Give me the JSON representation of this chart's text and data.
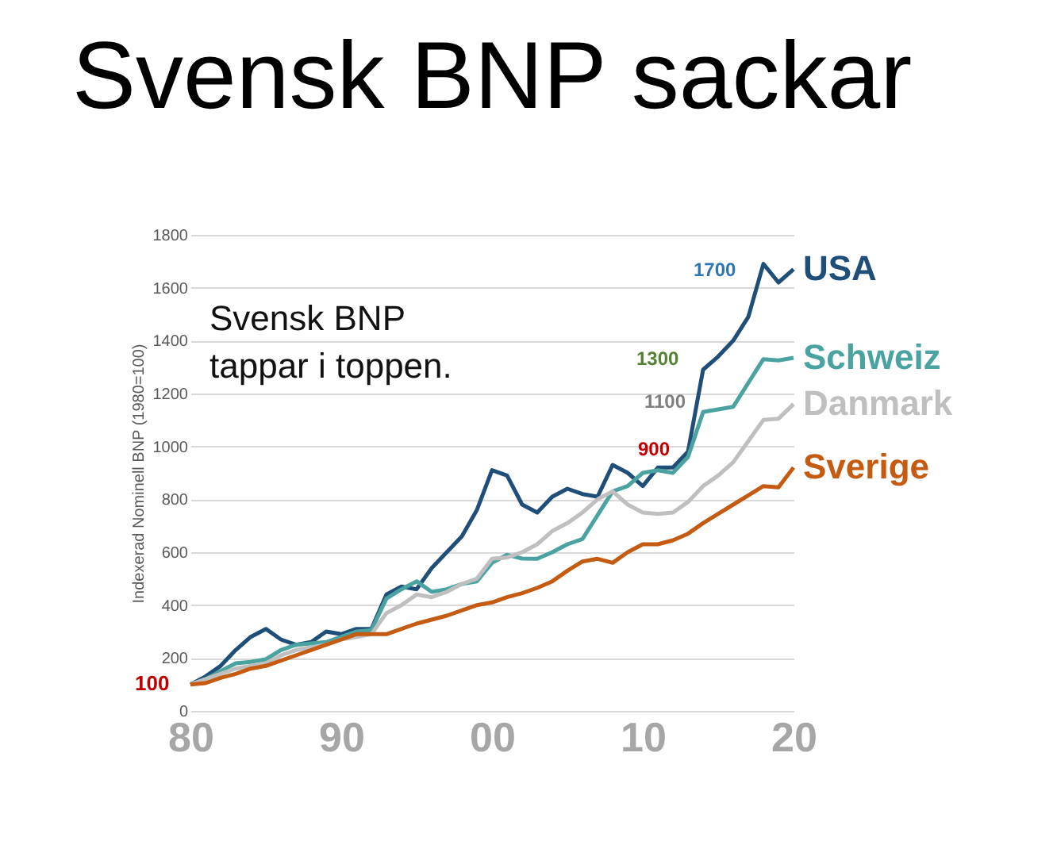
{
  "chart_data": {
    "type": "line",
    "title": "Svensk BNP sackar",
    "ylabel": "Indexerad Nominell BNP (1980=100)",
    "x": [
      1980,
      1981,
      1982,
      1983,
      1984,
      1985,
      1986,
      1987,
      1988,
      1989,
      1990,
      1991,
      1992,
      1993,
      1994,
      1995,
      1996,
      1997,
      1998,
      1999,
      2000,
      2001,
      2002,
      2003,
      2004,
      2005,
      2006,
      2007,
      2008,
      2009,
      2010,
      2011,
      2012,
      2013,
      2014,
      2015,
      2016,
      2017,
      2018,
      2019,
      2020
    ],
    "series": [
      {
        "name": "USA",
        "color": "#1f4e79",
        "values": [
          100,
          130,
          170,
          230,
          280,
          310,
          270,
          250,
          260,
          300,
          290,
          310,
          310,
          440,
          470,
          460,
          540,
          600,
          660,
          760,
          910,
          890,
          780,
          750,
          810,
          840,
          820,
          810,
          930,
          900,
          850,
          920,
          920,
          980,
          1290,
          1340,
          1400,
          1490,
          1690,
          1620,
          1670
        ]
      },
      {
        "name": "Schweiz",
        "color": "#4aa3a0",
        "values": [
          100,
          120,
          150,
          180,
          185,
          195,
          230,
          250,
          255,
          260,
          280,
          300,
          305,
          425,
          460,
          490,
          450,
          460,
          480,
          490,
          560,
          590,
          576,
          575,
          600,
          630,
          650,
          740,
          830,
          850,
          900,
          910,
          900,
          960,
          1130,
          1140,
          1150,
          1240,
          1330,
          1325,
          1335
        ]
      },
      {
        "name": "Danmark",
        "color": "#bfbfbf",
        "values": [
          100,
          120,
          140,
          160,
          170,
          180,
          210,
          230,
          240,
          250,
          270,
          280,
          290,
          370,
          400,
          440,
          430,
          450,
          480,
          500,
          575,
          580,
          600,
          630,
          680,
          710,
          750,
          800,
          830,
          780,
          750,
          745,
          750,
          790,
          850,
          890,
          940,
          1020,
          1100,
          1105,
          1160
        ]
      },
      {
        "name": "Sverige",
        "color": "#c55a11",
        "values": [
          100,
          105,
          125,
          140,
          160,
          170,
          190,
          210,
          230,
          250,
          270,
          290,
          290,
          290,
          310,
          330,
          345,
          360,
          380,
          400,
          410,
          430,
          445,
          465,
          490,
          530,
          565,
          575,
          560,
          600,
          630,
          630,
          645,
          670,
          710,
          745,
          780,
          815,
          850,
          845,
          920
        ]
      }
    ],
    "xlim": [
      1980,
      2020
    ],
    "xticks": [
      {
        "value": 1980,
        "label": "80"
      },
      {
        "value": 1990,
        "label": "90"
      },
      {
        "value": 2000,
        "label": "00"
      },
      {
        "value": 2010,
        "label": "10"
      },
      {
        "value": 2020,
        "label": "20"
      }
    ],
    "ylim": [
      0,
      1800
    ],
    "yticks": [
      0,
      200,
      400,
      600,
      800,
      1000,
      1200,
      1400,
      1600,
      1800
    ],
    "grid": "y",
    "legend": false,
    "line_style": "solid",
    "annotations": [
      "Svensk BNP tappar i toppen.",
      "100",
      "900",
      "1100",
      "1300",
      "1700"
    ]
  }
}
